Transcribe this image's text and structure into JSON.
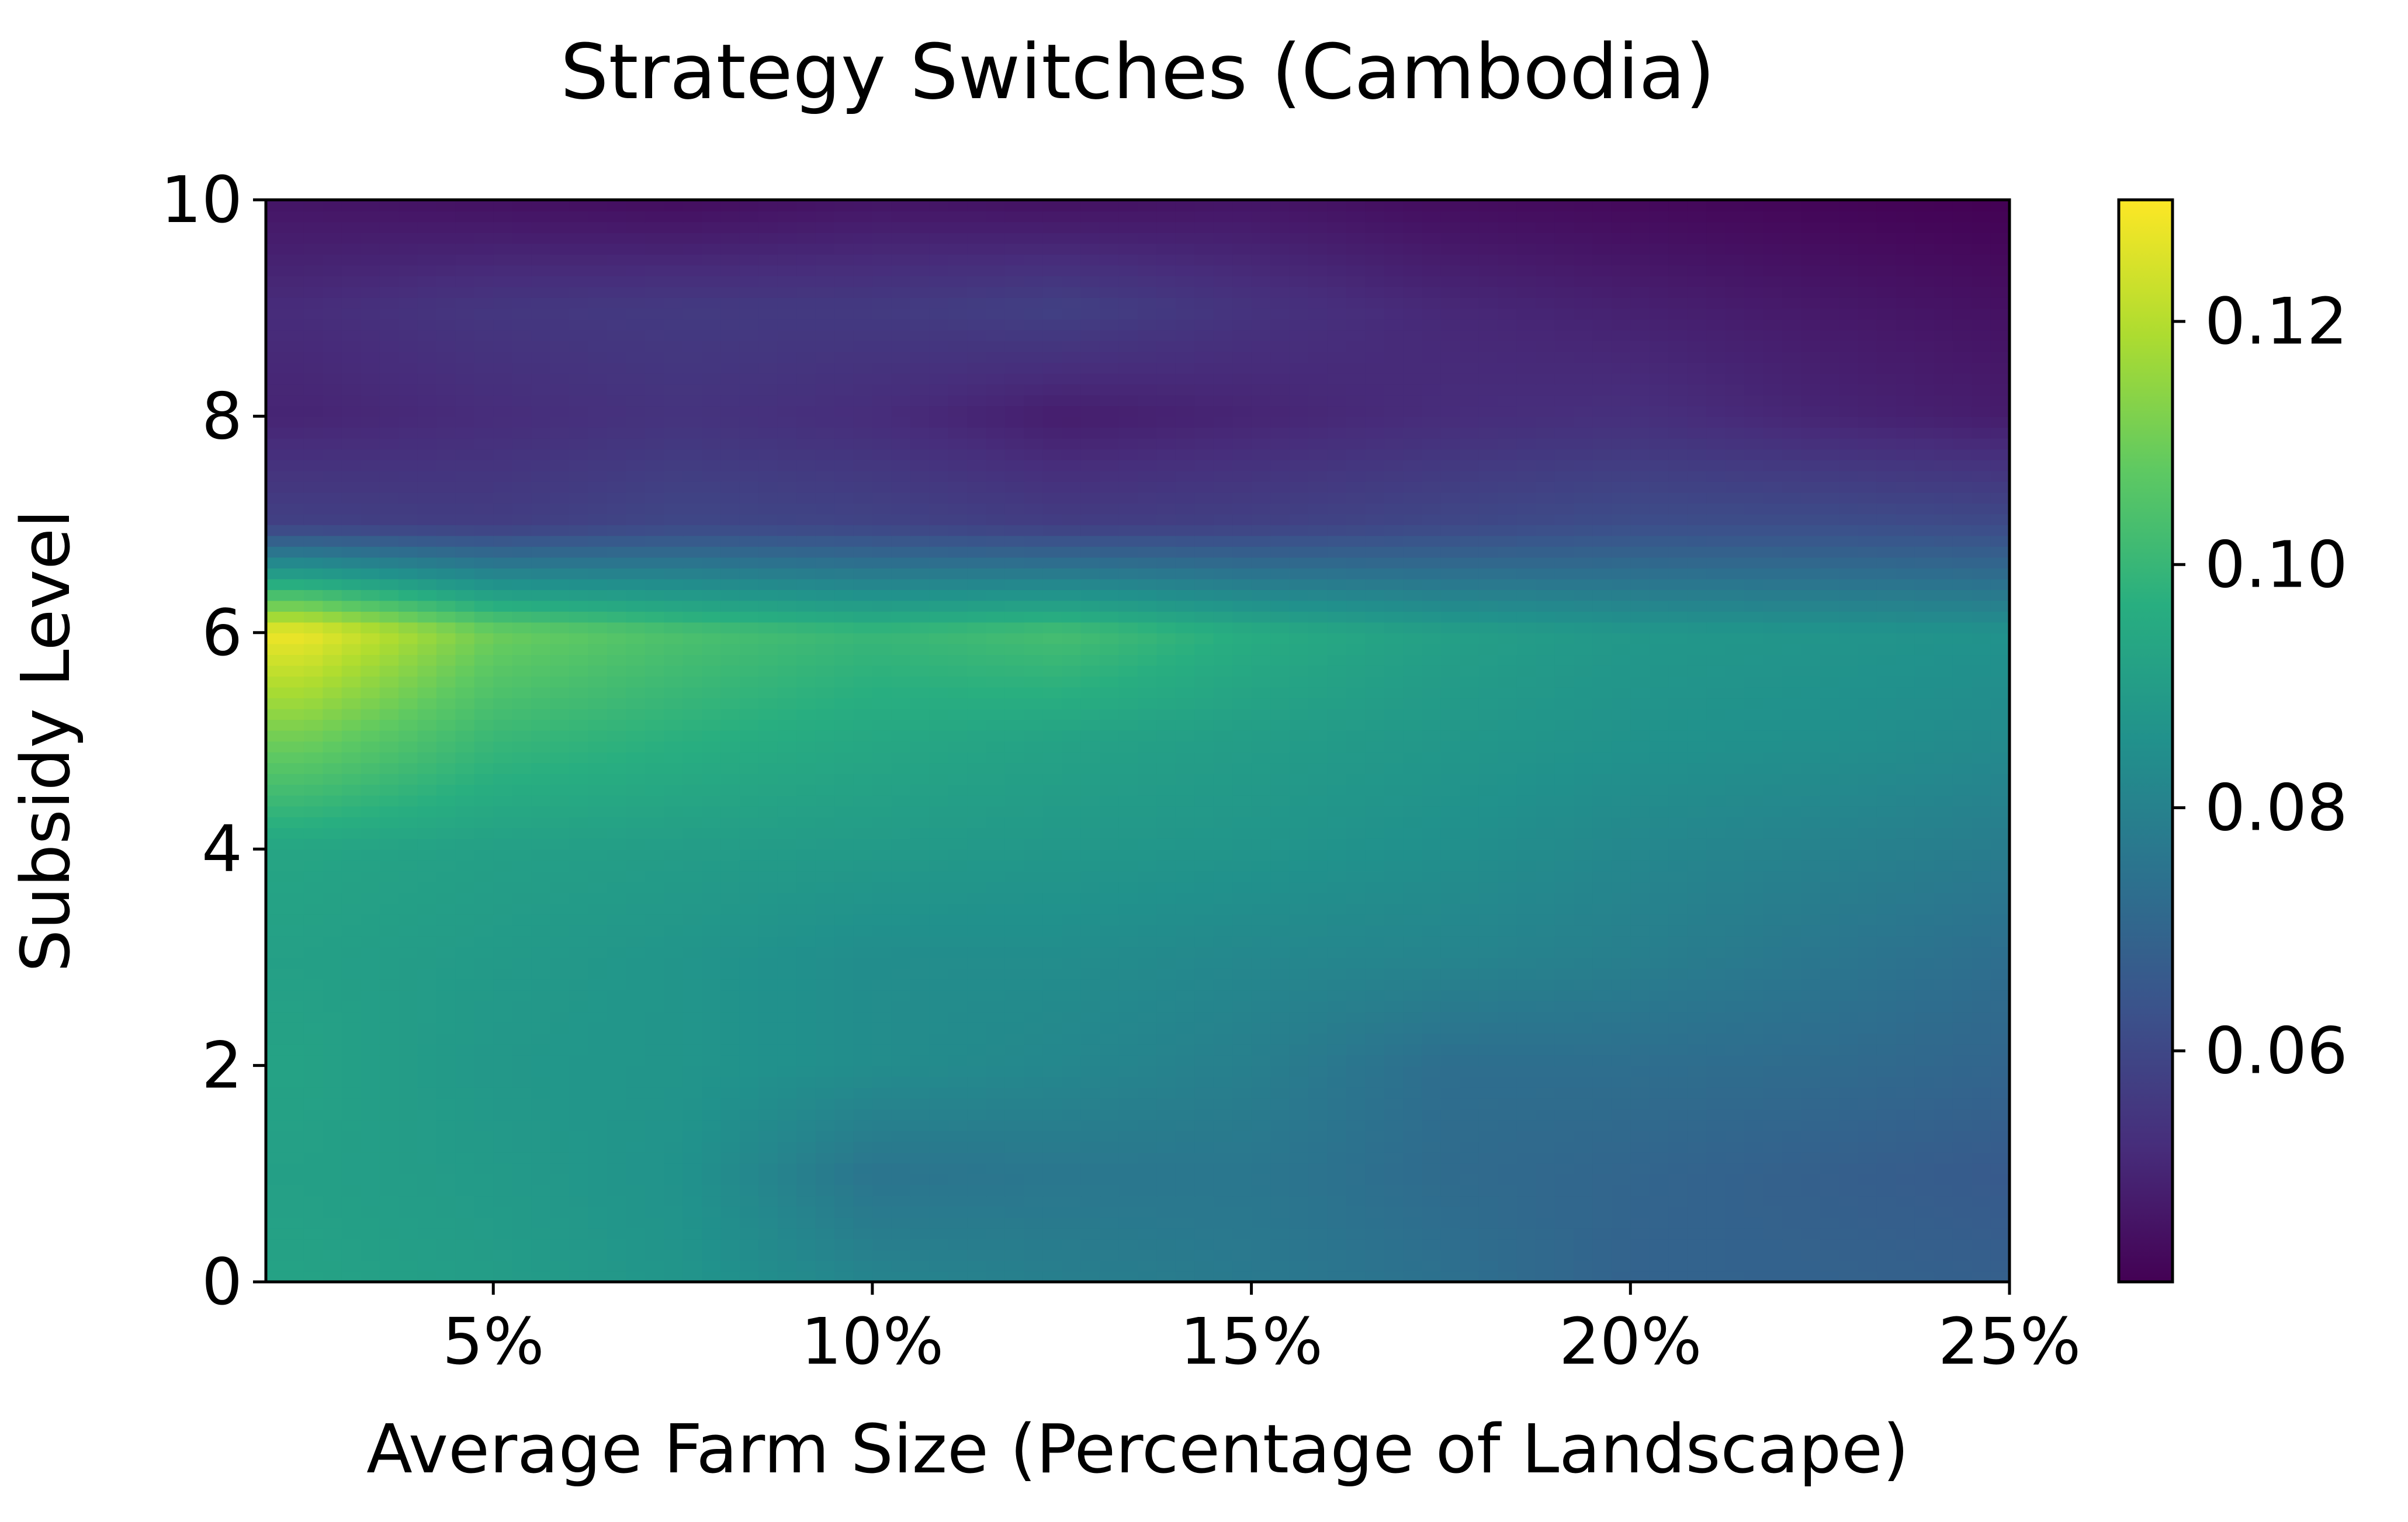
{
  "chart_data": {
    "type": "heatmap",
    "title": "Strategy Switches (Cambodia)",
    "xlabel": "Average Farm Size (Percentage of Landscape)",
    "ylabel": "Subsidy Level",
    "xlim": [
      2,
      25
    ],
    "ylim": [
      0,
      10
    ],
    "x_ticks": [
      5,
      10,
      15,
      20,
      25
    ],
    "x_tick_labels": [
      "5%",
      "10%",
      "15%",
      "20%",
      "25%"
    ],
    "y_ticks": [
      0,
      2,
      4,
      6,
      8,
      10
    ],
    "y_tick_labels": [
      "0",
      "2",
      "4",
      "6",
      "8",
      "10"
    ],
    "colormap": "viridis",
    "color_range": [
      0.041,
      0.13
    ],
    "colorbar_ticks": [
      0.06,
      0.08,
      0.1,
      0.12
    ],
    "colorbar_tick_labels": [
      "0.06",
      "0.08",
      "0.10",
      "0.12"
    ],
    "x": [
      2.5,
      5,
      7.5,
      10,
      12.5,
      15,
      17.5,
      20,
      22.5,
      25
    ],
    "y": [
      0,
      1,
      2,
      3,
      4,
      5,
      6,
      7,
      8,
      9,
      10
    ],
    "z": [
      [
        0.092,
        0.09,
        0.087,
        0.081,
        0.079,
        0.077,
        0.074,
        0.069,
        0.069,
        0.068
      ],
      [
        0.091,
        0.089,
        0.086,
        0.075,
        0.076,
        0.076,
        0.072,
        0.07,
        0.068,
        0.066
      ],
      [
        0.092,
        0.088,
        0.087,
        0.084,
        0.082,
        0.079,
        0.073,
        0.073,
        0.072,
        0.07
      ],
      [
        0.091,
        0.089,
        0.087,
        0.084,
        0.084,
        0.082,
        0.081,
        0.079,
        0.076,
        0.073
      ],
      [
        0.093,
        0.091,
        0.09,
        0.089,
        0.088,
        0.087,
        0.085,
        0.082,
        0.08,
        0.078
      ],
      [
        0.11,
        0.1,
        0.097,
        0.094,
        0.092,
        0.09,
        0.088,
        0.086,
        0.085,
        0.083
      ],
      [
        0.128,
        0.11,
        0.104,
        0.1,
        0.103,
        0.096,
        0.091,
        0.088,
        0.087,
        0.086
      ],
      [
        0.058,
        0.057,
        0.06,
        0.059,
        0.057,
        0.058,
        0.06,
        0.062,
        0.062,
        0.061
      ],
      [
        0.05,
        0.052,
        0.054,
        0.052,
        0.048,
        0.05,
        0.052,
        0.053,
        0.05,
        0.048
      ],
      [
        0.052,
        0.055,
        0.056,
        0.056,
        0.058,
        0.054,
        0.051,
        0.049,
        0.047,
        0.045
      ],
      [
        0.046,
        0.045,
        0.044,
        0.046,
        0.045,
        0.046,
        0.044,
        0.043,
        0.042,
        0.041
      ]
    ]
  }
}
